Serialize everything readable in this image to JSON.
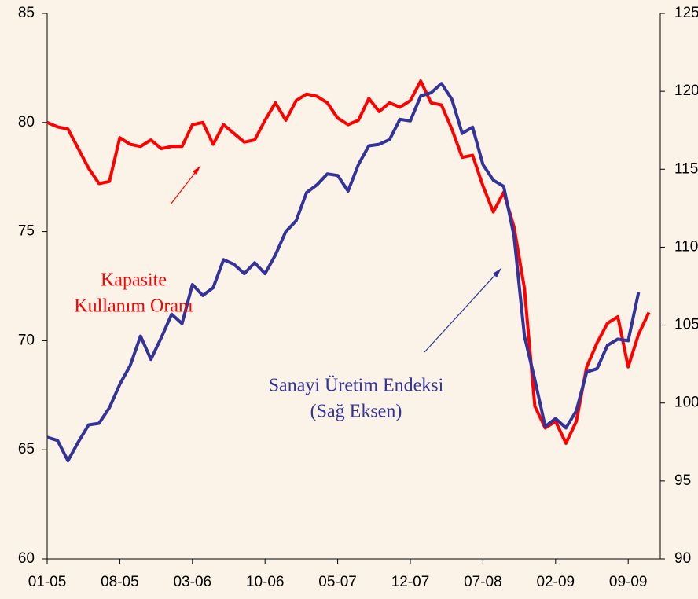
{
  "chart_data": {
    "type": "line",
    "categories": [
      "01-05",
      null,
      null,
      null,
      null,
      null,
      null,
      "08-05",
      null,
      null,
      null,
      null,
      null,
      null,
      "03-06",
      null,
      null,
      null,
      null,
      null,
      null,
      "10-06",
      null,
      null,
      null,
      null,
      null,
      null,
      "05-07",
      null,
      null,
      null,
      null,
      null,
      null,
      "12-07",
      null,
      null,
      null,
      null,
      null,
      null,
      "07-08",
      null,
      null,
      null,
      null,
      null,
      null,
      "02-09",
      null,
      null,
      null,
      null,
      null,
      null,
      "09-09",
      null,
      null
    ],
    "series": [
      {
        "color": "#ff0000",
        "values": [
          80.0,
          79.8,
          79.7,
          78.8,
          77.9,
          77.2,
          77.3,
          79.3,
          79.0,
          78.9,
          79.2,
          78.8,
          78.9,
          78.9,
          79.9,
          80.0,
          79.0,
          79.9,
          79.5,
          79.1,
          79.2,
          80.1,
          80.9,
          80.1,
          81.0,
          81.3,
          81.2,
          80.9,
          80.2,
          79.9,
          80.1,
          81.1,
          80.5,
          80.9,
          80.7,
          81.0,
          81.9,
          80.9,
          80.8,
          79.7,
          78.4,
          78.5,
          77.1,
          75.9,
          76.8,
          75.2,
          72.4,
          67.0,
          66.0,
          66.3,
          65.3,
          66.3,
          68.8,
          69.9,
          70.8,
          71.1,
          68.8,
          70.3,
          71.3
        ]
      },
      {
        "color": "#333399",
        "axis": "y2",
        "values": [
          97.8,
          97.6,
          96.3,
          97.5,
          98.6,
          98.7,
          99.7,
          101.2,
          102.4,
          104.3,
          102.8,
          104.2,
          105.7,
          105.1,
          107.6,
          106.9,
          107.4,
          109.2,
          108.9,
          108.3,
          109.0,
          108.3,
          109.5,
          111.0,
          111.7,
          113.5,
          114.0,
          114.7,
          114.6,
          113.6,
          115.3,
          116.5,
          116.6,
          116.9,
          118.2,
          118.1,
          119.7,
          119.9,
          120.5,
          119.5,
          117.3,
          117.7,
          115.3,
          114.3,
          113.9,
          110.7,
          104.3,
          101.5,
          98.5,
          99.0,
          98.4,
          99.5,
          102.0,
          102.2,
          103.7,
          104.1,
          104.0,
          107.1,
          null
        ]
      }
    ],
    "ylim": [
      60,
      85
    ],
    "yticks": [
      60,
      65,
      70,
      75,
      80,
      85
    ],
    "y2lim": [
      90,
      125
    ],
    "y2ticks": [
      90,
      95,
      100,
      105,
      110,
      115,
      120,
      125
    ],
    "annotations": [
      {
        "lines": [
          "Kapasite",
          "Kullanım Oranı"
        ],
        "color": "#ff0000"
      },
      {
        "lines": [
          "Sanayi Üretim Endeksi",
          "(Sağ Eksen)"
        ],
        "color": "#333399"
      }
    ]
  }
}
